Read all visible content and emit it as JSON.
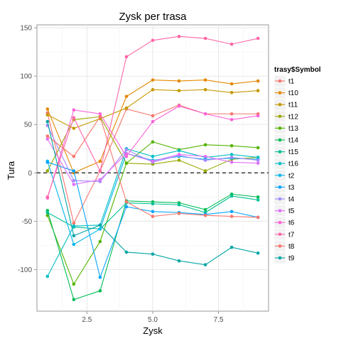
{
  "chart_data": {
    "type": "line",
    "title": "Zysk per trasa",
    "xlabel": "Zysk",
    "ylabel": "Tura",
    "xlim": [
      0.6,
      9.4
    ],
    "ylim": [
      -143,
      153
    ],
    "x_ticks": [
      2.5,
      5.0,
      7.5
    ],
    "x_tick_labels": [
      "2.5",
      "5.0",
      "7.5"
    ],
    "y_ticks": [
      -100,
      -50,
      0,
      50,
      100,
      150
    ],
    "y_tick_labels": [
      "-100",
      "-50",
      "0",
      "50",
      "100",
      "150"
    ],
    "grid": true,
    "reference_line": {
      "y": 0,
      "style": "dashed"
    },
    "legend_title": "trasy$Symbol",
    "legend_position": "right",
    "x": [
      1,
      2,
      3,
      4,
      5,
      6,
      7,
      8,
      9
    ],
    "series": [
      {
        "name": "t1",
        "color": "#F8766D",
        "values": [
          62,
          -52,
          2,
          66,
          59,
          70,
          61,
          61,
          61
        ]
      },
      {
        "name": "t10",
        "color": "#E38900",
        "values": [
          66,
          0,
          12,
          79,
          96,
          95,
          96,
          92,
          95
        ]
      },
      {
        "name": "t11",
        "color": "#C49A00",
        "values": [
          60,
          46,
          56,
          67,
          86,
          85,
          86,
          83,
          85
        ]
      },
      {
        "name": "t12",
        "color": "#99A800",
        "values": [
          2,
          55,
          58,
          10,
          9,
          13,
          2,
          14,
          16
        ]
      },
      {
        "name": "t13",
        "color": "#53B400",
        "values": [
          -44,
          -115,
          -71,
          10,
          32,
          24,
          29,
          28,
          26
        ]
      },
      {
        "name": "t14",
        "color": "#00BC56",
        "values": [
          -39,
          -131,
          -122,
          -29,
          -30,
          -31,
          -38,
          -22,
          -25
        ]
      },
      {
        "name": "t15",
        "color": "#00C094",
        "values": [
          -41,
          -56,
          -58,
          -31,
          -32,
          -33,
          -41,
          -24,
          -28
        ]
      },
      {
        "name": "t16",
        "color": "#00BFC4",
        "values": [
          -107,
          -55,
          -54,
          25,
          17,
          23,
          16,
          19,
          16
        ]
      },
      {
        "name": "t2",
        "color": "#00B6EB",
        "values": [
          12,
          -74,
          -58,
          20,
          13,
          17,
          14,
          15,
          14
        ]
      },
      {
        "name": "t3",
        "color": "#06A4FF",
        "values": [
          11,
          2,
          -108,
          -35,
          -40,
          -41,
          -43,
          -40,
          -46
        ]
      },
      {
        "name": "t4",
        "color": "#A58AFF",
        "values": [
          49,
          -8,
          -9,
          24,
          11,
          18,
          13,
          16,
          13
        ]
      },
      {
        "name": "t5",
        "color": "#DF70F8",
        "values": [
          35,
          -12,
          -7,
          20,
          12,
          19,
          17,
          11,
          10
        ]
      },
      {
        "name": "t6",
        "color": "#FB61D7",
        "values": [
          -26,
          65,
          61,
          17,
          53,
          69,
          61,
          55,
          59
        ]
      },
      {
        "name": "t7",
        "color": "#FF66A8",
        "values": [
          -25,
          57,
          2,
          120,
          137,
          141,
          139,
          133,
          139
        ]
      },
      {
        "name": "t8",
        "color": "#F8766D",
        "values": [
          38,
          17,
          58,
          -30,
          -45,
          -42,
          -44,
          -45,
          -46
        ]
      },
      {
        "name": "t9",
        "color": "#00A5A5",
        "values": [
          53,
          -65,
          -54,
          -82,
          -84,
          -91,
          -95,
          -77,
          -83
        ]
      }
    ]
  }
}
